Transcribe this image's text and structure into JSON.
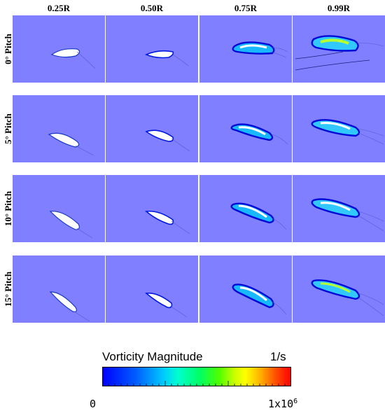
{
  "columns": [
    "0.25R",
    "0.50R",
    "0.75R",
    "0.99R"
  ],
  "rows": [
    "0° Pitch",
    "5° Pitch",
    "10° Pitch",
    "15° Pitch"
  ],
  "panel_background": "#7f7fff",
  "colorbar": {
    "title": "Vorticity Magnitude",
    "unit": "1/s",
    "min_label": "0",
    "max_label": "1x10",
    "max_exponent": "6",
    "colors": [
      "#0000ff",
      "#00c8ff",
      "#00ff60",
      "#ffff00",
      "#ff0000"
    ]
  }
}
